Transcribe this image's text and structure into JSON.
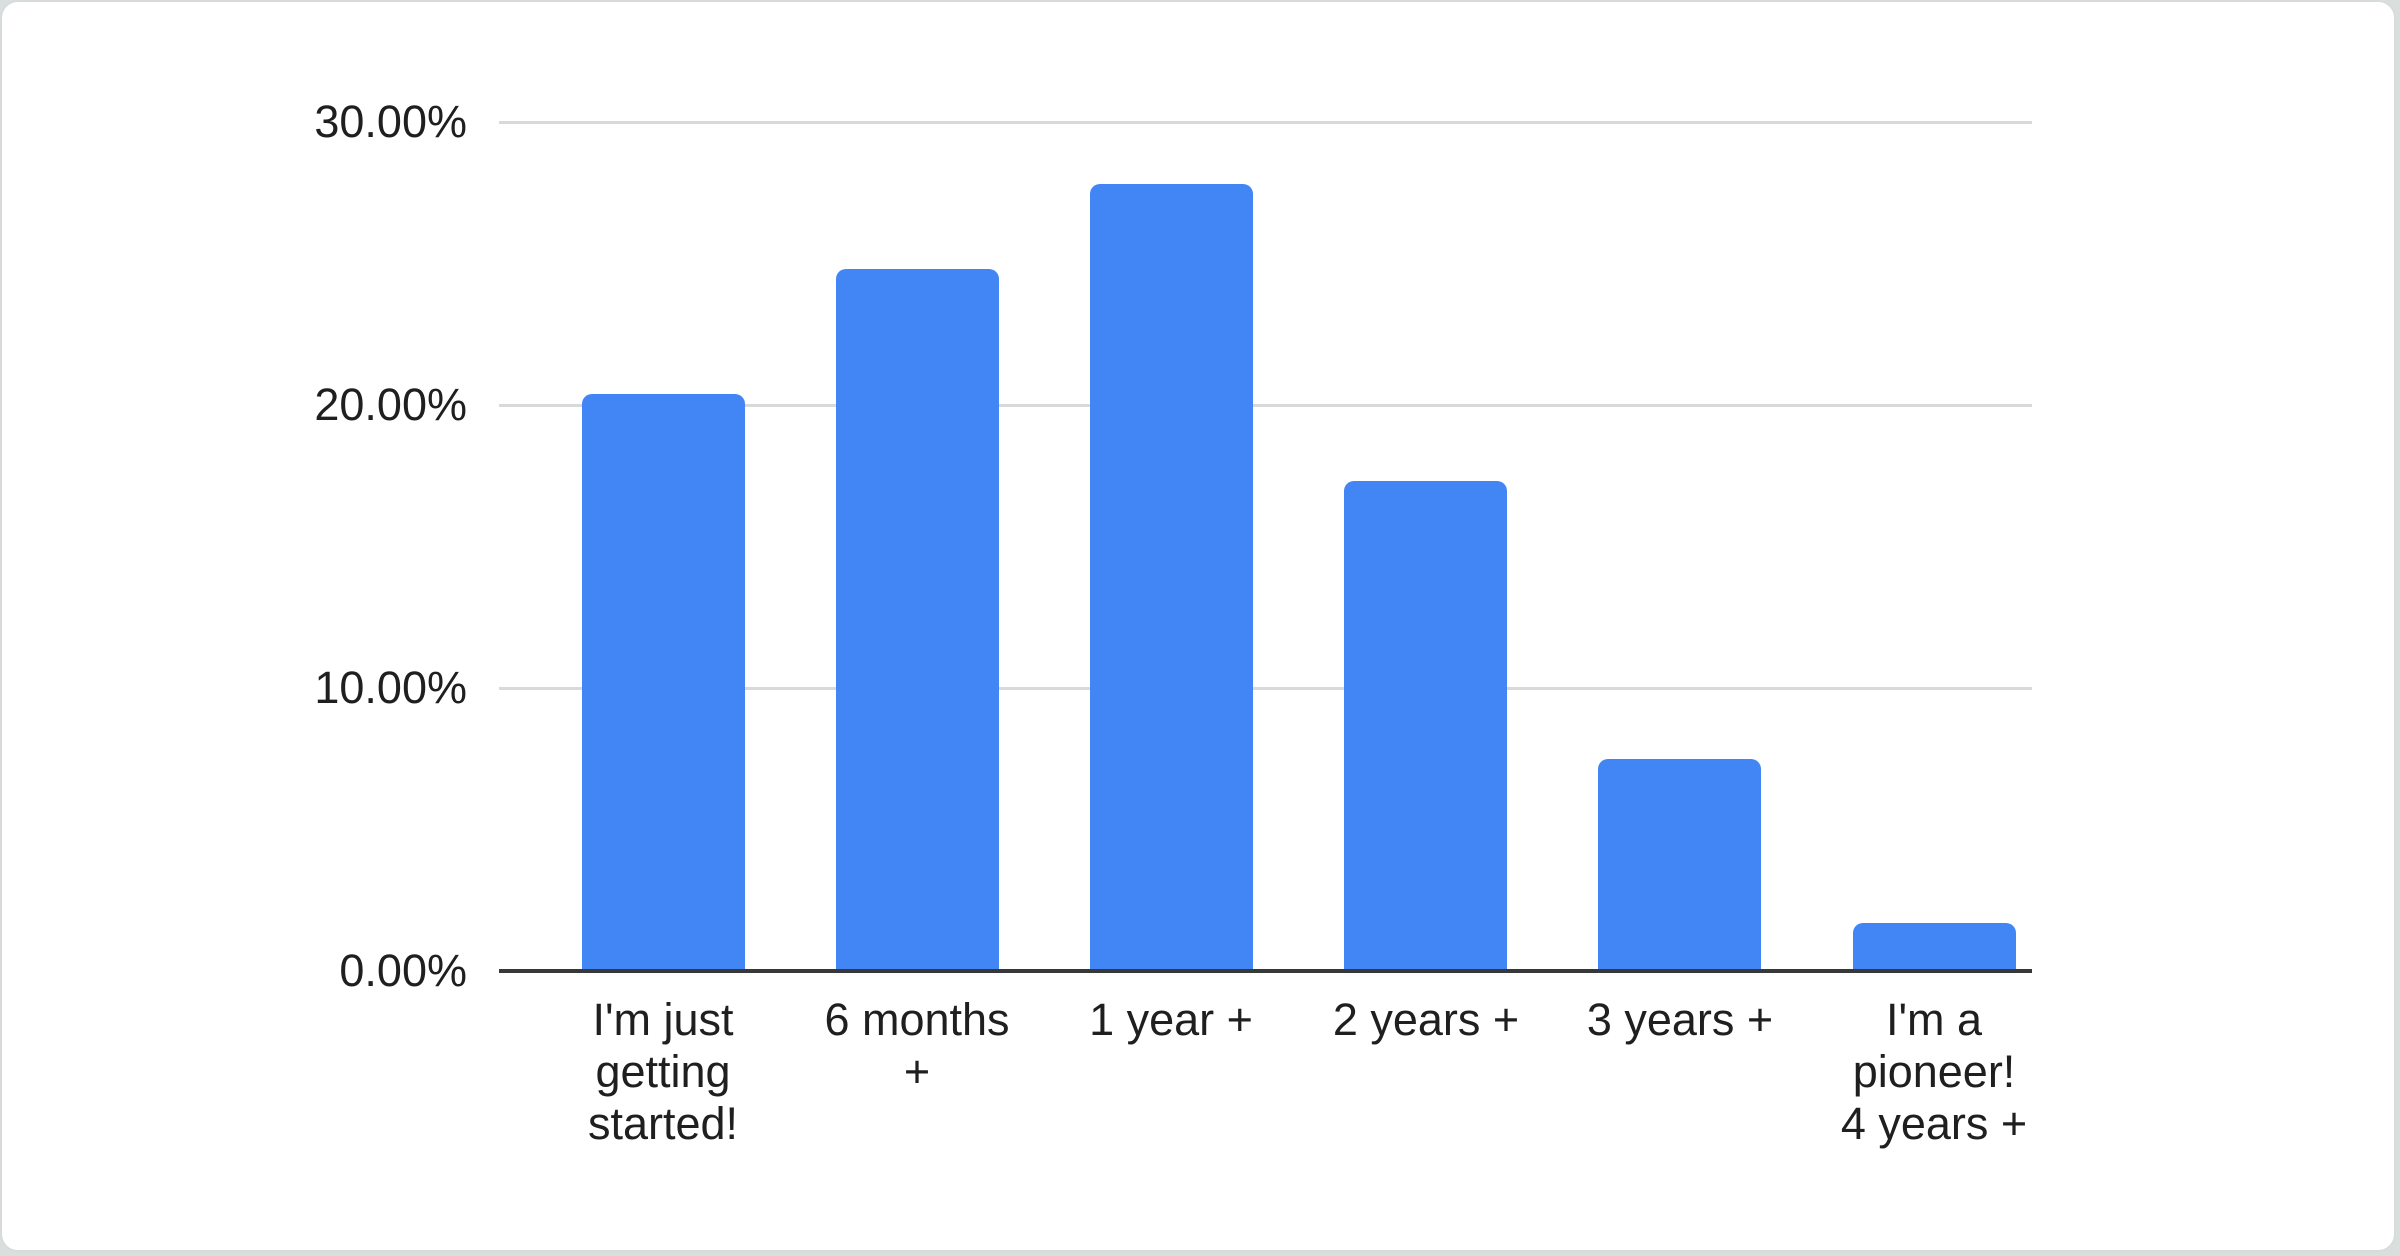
{
  "chart_data": {
    "type": "bar",
    "categories": [
      "I'm just getting started!",
      "6 months +",
      "1 year +",
      "2 years +",
      "3 years +",
      "I'm a pioneer! 4 years +"
    ],
    "category_display_lines": [
      [
        "I'm just",
        "getting",
        "started!"
      ],
      [
        "6 months",
        "+"
      ],
      [
        "1 year +"
      ],
      [
        "2 years +"
      ],
      [
        "3 years +"
      ],
      [
        "I'm a",
        "pioneer!",
        "4 years +"
      ]
    ],
    "values": [
      20.4,
      24.8,
      27.8,
      17.3,
      7.5,
      1.7
    ],
    "title": "",
    "xlabel": "",
    "ylabel": "",
    "ylim": [
      0,
      30
    ],
    "yticks": [
      {
        "value": 30,
        "label": "30.00%"
      },
      {
        "value": 20,
        "label": "20.00%"
      },
      {
        "value": 10,
        "label": "10.00%"
      },
      {
        "value": 0,
        "label": "0.00%"
      }
    ],
    "grid": true,
    "legend_position": "none",
    "colors": {
      "bar": "#4285f4",
      "gridline": "#d9d9d9",
      "axis_line": "#37383a",
      "tick_text": "#1f1f1f",
      "card_background": "#ffffff",
      "card_border": "#d7dbde",
      "page_background": "#d9dfdd"
    }
  }
}
